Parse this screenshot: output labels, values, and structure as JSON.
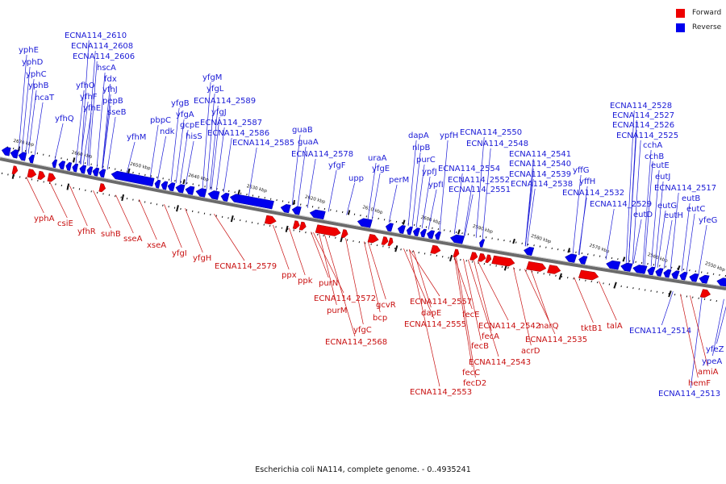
{
  "caption": "Escherichia coli NA114, complete genome. - 0..4935241",
  "legend": [
    {
      "label": "Forward",
      "color": "#ee0000"
    },
    {
      "label": "Reverse",
      "color": "#0000ee"
    }
  ],
  "colors": {
    "forward": "#ee0000",
    "reverse": "#0000ee",
    "backbone": "#666666",
    "tick": "#111111"
  },
  "chart_data": {
    "type": "diagram",
    "kb_labels": [
      "2670 kbp",
      "2660 kbp",
      "2650 kbp",
      "2640 kbp",
      "2630 kbp",
      "2620 kbp",
      "2610 kbp",
      "2600 kbp",
      "2590 kbp",
      "2580 kbp",
      "2570 kbp",
      "2560 kbp",
      "2550 kbp"
    ],
    "reverse_labels": [
      "yphE",
      "yphD",
      "yphC",
      "yphB",
      "hcaT",
      "ECNA114_2610",
      "ECNA114_2608",
      "ECNA114_2606",
      "hscA",
      "fdx",
      "yfhJ",
      "pepB",
      "sseB",
      "yfhO",
      "yfhF",
      "yfhE",
      "yfhQ",
      "yfhM",
      "pbpC",
      "ndk",
      "yfgB",
      "yfgA",
      "gcpE",
      "hisS",
      "yfgM",
      "yfgL",
      "ECNA114_2589",
      "yfgJ",
      "ECNA114_2587",
      "ECNA114_2586",
      "ECNA114_2585",
      "guaB",
      "guaA",
      "ECNA114_2578",
      "yfgF",
      "upp",
      "uraA",
      "yfgE",
      "perM",
      "dapA",
      "nlpB",
      "purC",
      "ypfJ",
      "ypfI",
      "ypfH",
      "ECNA114_2554",
      "ECNA114_2552",
      "ECNA114_2551",
      "ECNA114_2550",
      "ECNA114_2548",
      "ECNA114_2541",
      "ECNA114_2540",
      "ECNA114_2539",
      "ECNA114_2538",
      "yffG",
      "yffH",
      "ECNA114_2532",
      "ECNA114_2529",
      "ECNA114_2528",
      "ECNA114_2527",
      "ECNA114_2526",
      "ECNA114_2525",
      "cchA",
      "cchB",
      "eutE",
      "eutJ",
      "ECNA114_2517",
      "eutD",
      "eutG",
      "eutH",
      "eutB",
      "eutC",
      "yfeG",
      "ECNA114_2514",
      "yfeZ",
      "ypeA",
      "ECNA114_2513"
    ],
    "forward_labels": [
      "yphA",
      "csiE",
      "yfhR",
      "suhB",
      "sseA",
      "xseA",
      "yfgI",
      "yfgH",
      "ECNA114_2579",
      "ppx",
      "ppk",
      "purN",
      "ECNA114_2572",
      "purM",
      "gcvR",
      "bcp",
      "yfgC",
      "ECNA114_2568",
      "ECNA114_2557",
      "dapE",
      "ECNA114_2555",
      "fecE",
      "fecA",
      "fecB",
      "fecC",
      "fecD2",
      "ECNA114_2553",
      "ECNA114_2542",
      "ECNA114_2543",
      "narQ",
      "ECNA114_2535",
      "acrD",
      "tktB1",
      "talA",
      "amiA",
      "hemF"
    ]
  }
}
